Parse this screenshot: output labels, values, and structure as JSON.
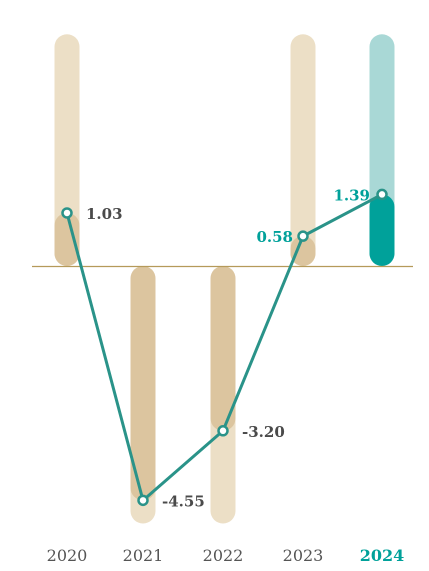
{
  "chart_data": {
    "type": "line",
    "categories": [
      "2020",
      "2021",
      "2022",
      "2023",
      "2024"
    ],
    "values": [
      1.03,
      -4.55,
      -3.2,
      0.58,
      1.39
    ],
    "value_labels": [
      "1.03",
      "-4.55",
      "-3.20",
      "0.58",
      "1.39"
    ],
    "highlight_category": "2024",
    "ylim": [
      -5.0,
      2.0
    ],
    "background_range": [
      -5.0,
      4.5
    ],
    "grid": false,
    "legend": "none",
    "colors": {
      "line": "#2a9389",
      "accent": "#00a19a",
      "accent_light": "#a9d8d6",
      "bar_light": "#ecdfc6",
      "bar_dark": "#dcc59f",
      "baseline": "#b59a5a",
      "label_text": "#4a4a4a",
      "axis_text": "#555555"
    }
  }
}
